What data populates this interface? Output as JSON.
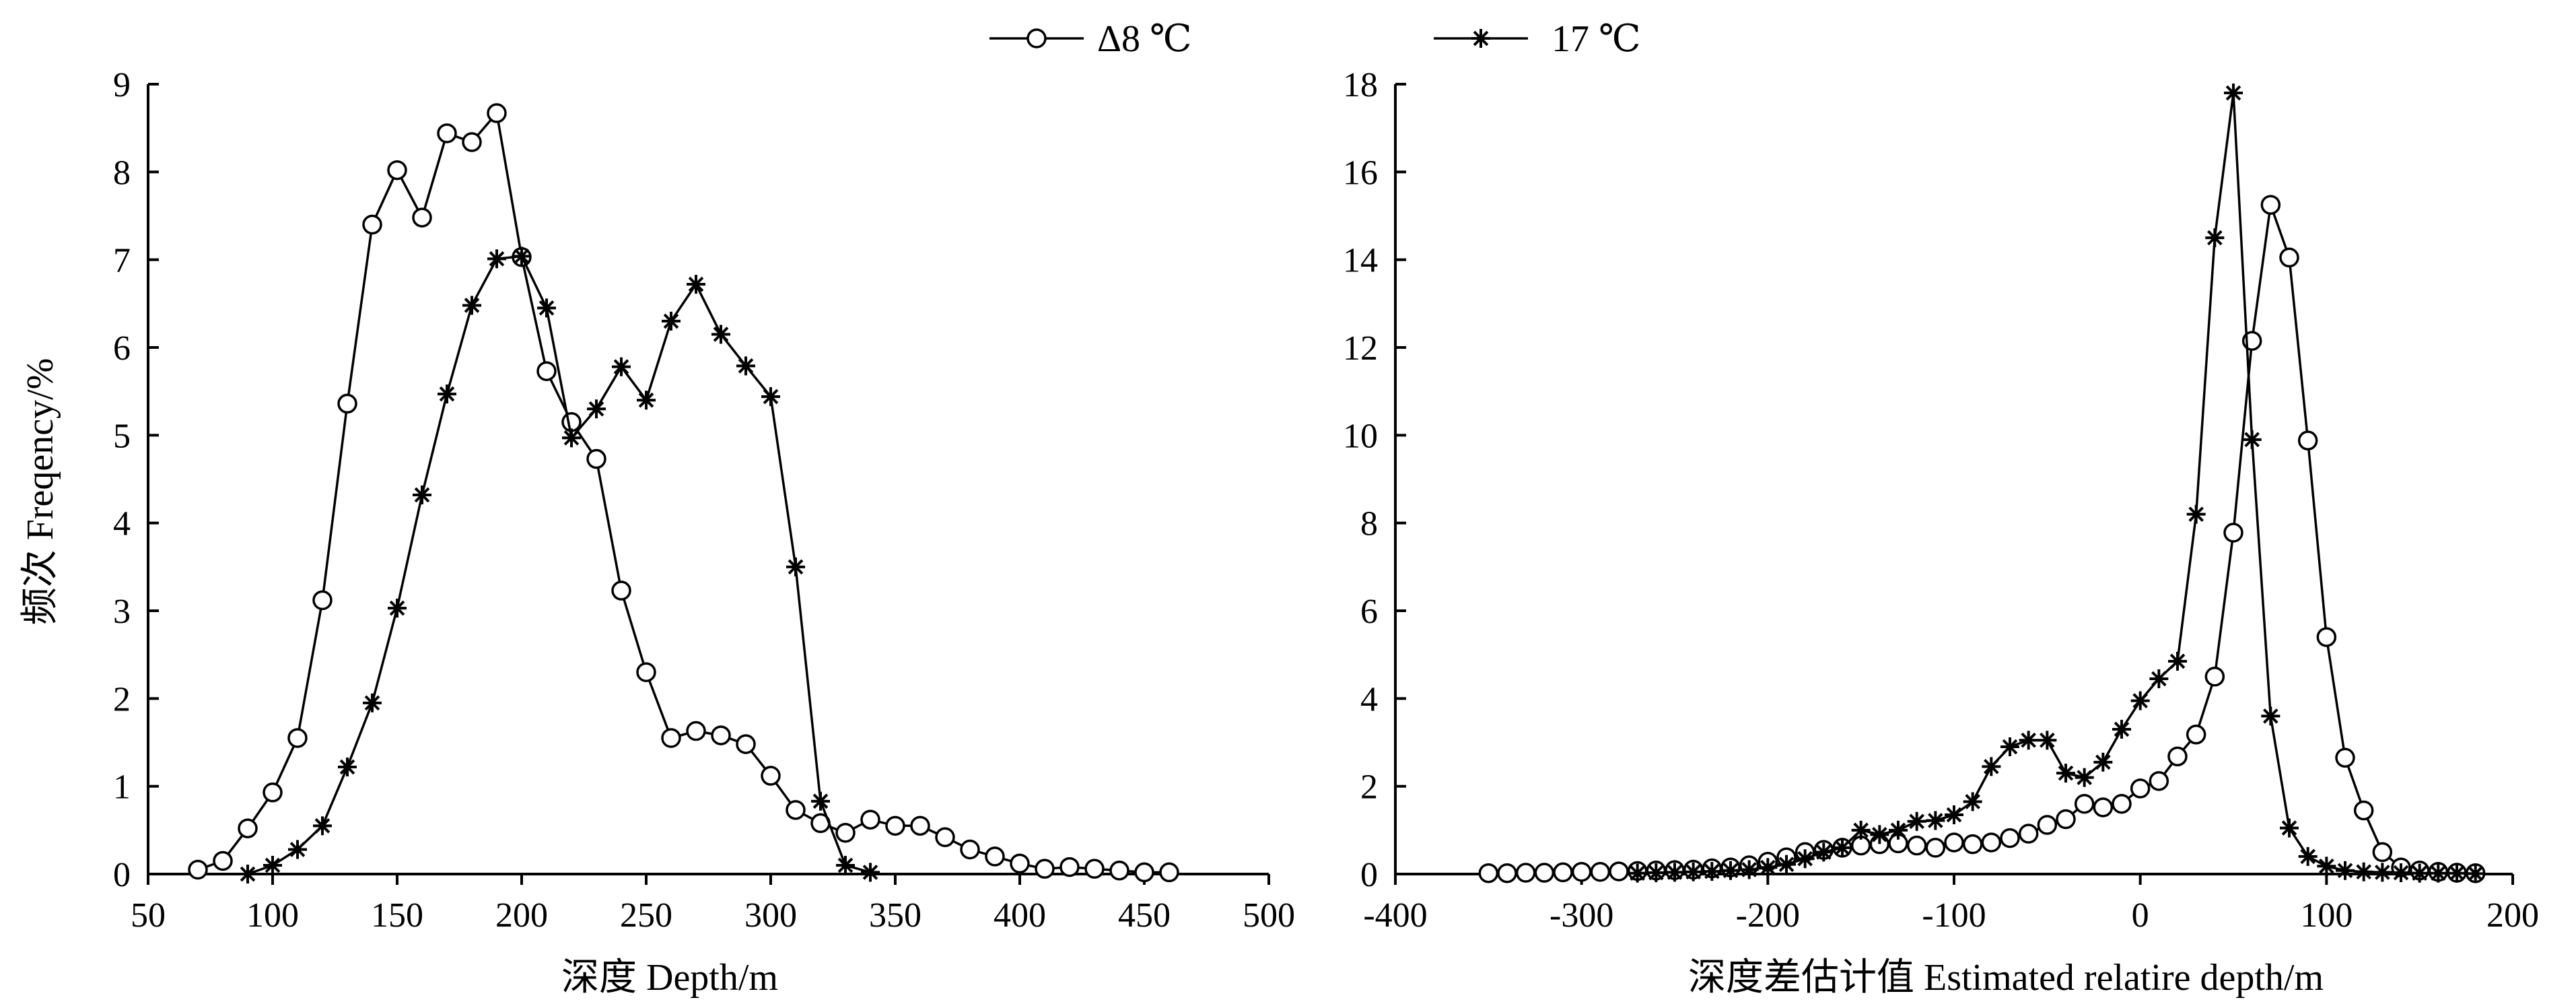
{
  "legend": {
    "placement": "top-center",
    "entries": [
      {
        "label": "Δ8 ℃",
        "marker": "circle-icon"
      },
      {
        "label": "17 ℃",
        "marker": "star-icon"
      }
    ]
  },
  "chart_data": [
    {
      "type": "line",
      "xlabel": "深度 Depth/m",
      "ylabel": "频次 Freqency/%",
      "xlim": [
        50,
        500
      ],
      "ylim": [
        0,
        9
      ],
      "xticks": [
        50,
        100,
        150,
        200,
        250,
        300,
        350,
        400,
        450,
        500
      ],
      "yticks": [
        0,
        1,
        2,
        3,
        4,
        5,
        6,
        7,
        8,
        9
      ],
      "grid": false,
      "series": [
        {
          "name": "Δ8 ℃",
          "marker": "circle",
          "x": [
            70,
            80,
            90,
            100,
            110,
            120,
            130,
            140,
            150,
            160,
            170,
            180,
            190,
            200,
            210,
            220,
            230,
            240,
            250,
            260,
            270,
            280,
            290,
            300,
            310,
            320,
            330,
            340,
            350,
            360,
            370,
            380,
            390,
            400,
            410,
            420,
            430,
            440,
            450,
            460
          ],
          "y": [
            0.05,
            0.15,
            0.52,
            0.93,
            1.55,
            3.12,
            5.36,
            7.4,
            8.02,
            7.48,
            8.44,
            8.34,
            8.67,
            7.03,
            5.73,
            5.15,
            4.73,
            3.23,
            2.3,
            1.55,
            1.63,
            1.58,
            1.48,
            1.12,
            0.73,
            0.58,
            0.47,
            0.62,
            0.55,
            0.55,
            0.42,
            0.28,
            0.2,
            0.12,
            0.06,
            0.08,
            0.06,
            0.04,
            0.02,
            0.02
          ]
        },
        {
          "name": "17 ℃",
          "marker": "star",
          "x": [
            90,
            100,
            110,
            120,
            130,
            140,
            150,
            160,
            170,
            180,
            190,
            200,
            210,
            220,
            230,
            240,
            250,
            260,
            270,
            280,
            290,
            300,
            310,
            320,
            330,
            340
          ],
          "y": [
            0.0,
            0.1,
            0.28,
            0.55,
            1.22,
            1.95,
            3.03,
            4.32,
            5.47,
            6.48,
            7.01,
            7.04,
            6.45,
            4.97,
            5.3,
            5.78,
            5.4,
            6.3,
            6.72,
            6.15,
            5.79,
            5.44,
            3.5,
            0.83,
            0.1,
            0.02
          ]
        }
      ]
    },
    {
      "type": "line",
      "xlabel": "深度差估计值 Estimated relatire depth/m",
      "ylabel": "",
      "xlim": [
        -400,
        200
      ],
      "ylim": [
        0,
        18
      ],
      "xticks": [
        -400,
        -300,
        -200,
        -100,
        0,
        100,
        200
      ],
      "yticks": [
        0,
        2,
        4,
        6,
        8,
        10,
        12,
        14,
        16,
        18
      ],
      "grid": false,
      "series": [
        {
          "name": "Δ8 ℃",
          "marker": "circle",
          "x": [
            -350,
            -340,
            -330,
            -320,
            -310,
            -300,
            -290,
            -280,
            -270,
            -260,
            -250,
            -240,
            -230,
            -220,
            -210,
            -200,
            -190,
            -180,
            -170,
            -160,
            -150,
            -140,
            -130,
            -120,
            -110,
            -100,
            -90,
            -80,
            -70,
            -60,
            -50,
            -40,
            -30,
            -20,
            -10,
            0,
            10,
            20,
            30,
            40,
            50,
            60,
            70,
            80,
            90,
            100,
            110,
            120,
            130,
            140,
            150,
            160,
            170,
            180
          ],
          "y": [
            0.02,
            0.02,
            0.03,
            0.03,
            0.04,
            0.05,
            0.05,
            0.06,
            0.07,
            0.08,
            0.09,
            0.1,
            0.13,
            0.15,
            0.2,
            0.28,
            0.38,
            0.5,
            0.55,
            0.6,
            0.65,
            0.68,
            0.7,
            0.65,
            0.6,
            0.72,
            0.68,
            0.72,
            0.82,
            0.92,
            1.12,
            1.25,
            1.6,
            1.52,
            1.6,
            1.95,
            2.12,
            2.68,
            3.18,
            4.5,
            7.78,
            12.15,
            15.25,
            14.05,
            9.88,
            5.4,
            2.65,
            1.45,
            0.5,
            0.15,
            0.08,
            0.05,
            0.03,
            0.02
          ]
        },
        {
          "name": "17 ℃",
          "marker": "star",
          "x": [
            -270,
            -260,
            -250,
            -240,
            -230,
            -220,
            -210,
            -200,
            -190,
            -180,
            -170,
            -160,
            -150,
            -140,
            -130,
            -120,
            -110,
            -100,
            -90,
            -80,
            -70,
            -60,
            -50,
            -40,
            -30,
            -20,
            -10,
            0,
            10,
            20,
            30,
            40,
            50,
            60,
            70,
            80,
            90,
            100,
            110,
            120,
            130,
            140,
            150,
            160,
            170,
            180
          ],
          "y": [
            0.02,
            0.03,
            0.04,
            0.05,
            0.06,
            0.08,
            0.1,
            0.15,
            0.22,
            0.35,
            0.5,
            0.6,
            1.0,
            0.9,
            1.0,
            1.2,
            1.22,
            1.35,
            1.65,
            2.45,
            2.9,
            3.05,
            3.05,
            2.3,
            2.2,
            2.55,
            3.3,
            3.95,
            4.45,
            4.85,
            8.2,
            14.5,
            17.8,
            9.9,
            3.6,
            1.05,
            0.4,
            0.18,
            0.08,
            0.05,
            0.04,
            0.03,
            0.02,
            0.02,
            0.02,
            0.01
          ]
        }
      ]
    }
  ]
}
